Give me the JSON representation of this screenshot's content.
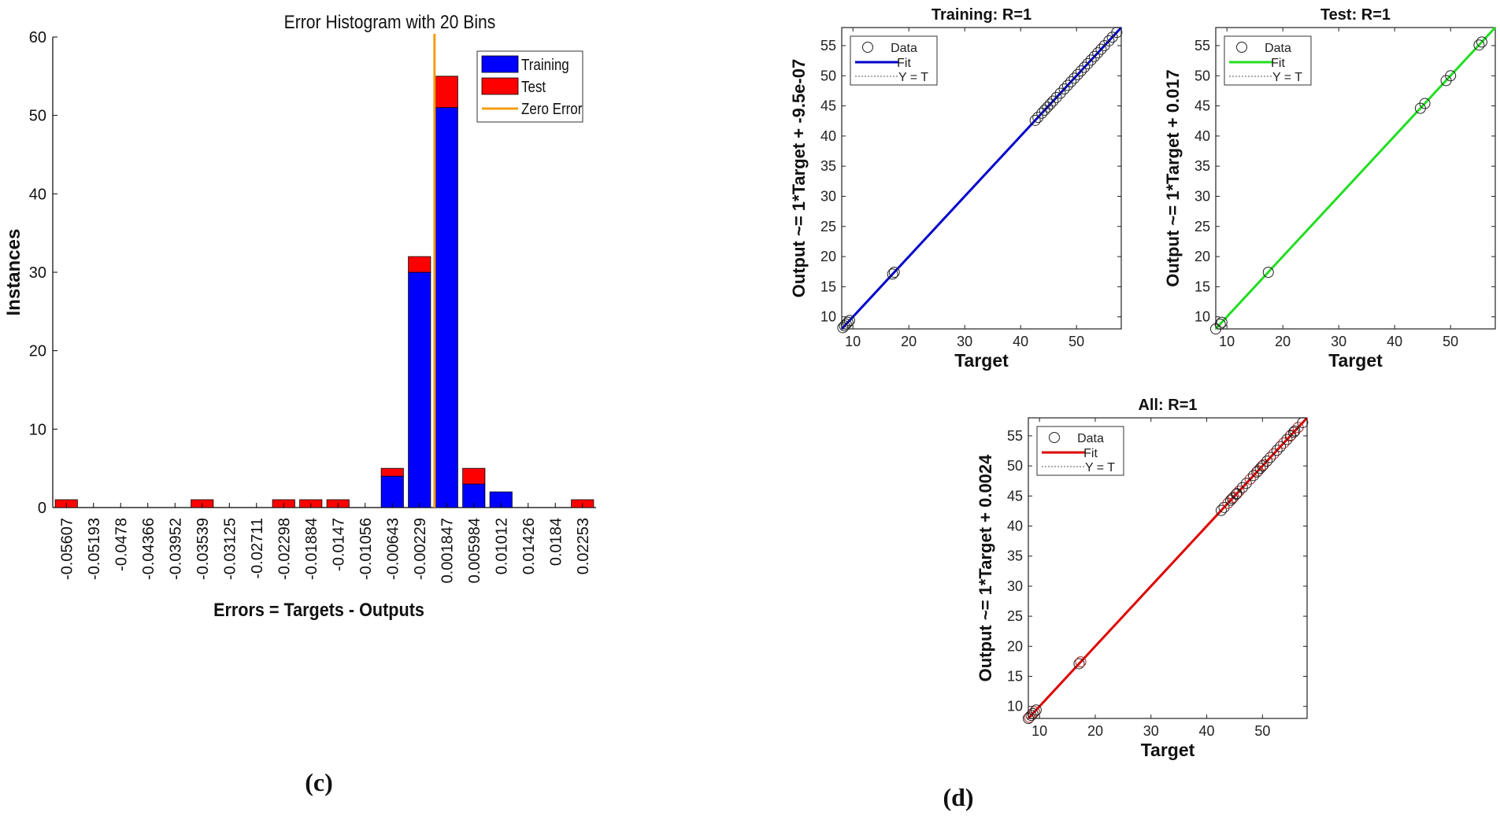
{
  "colors": {
    "training": "#0000ff",
    "test": "#ff0000",
    "zero_error": "#f39c12",
    "fit_training": "#0000cc",
    "fit_test": "#22dd22",
    "fit_all": "#dd0000"
  },
  "panel_labels": {
    "c": "(c)",
    "d": "(d)"
  },
  "chart_data": [
    {
      "type": "bar",
      "title": "Error Histogram with 20 Bins",
      "xlabel": "Errors = Targets - Outputs",
      "ylabel": "Instances",
      "ylim": [
        0,
        60
      ],
      "yticks": [
        0,
        10,
        20,
        30,
        40,
        50,
        60
      ],
      "stacked": true,
      "categories": [
        "-0.05607",
        "-0.05193",
        "-0.0478",
        "-0.04366",
        "-0.03952",
        "-0.03539",
        "-0.03125",
        "-0.02711",
        "-0.02298",
        "-0.01884",
        "-0.0147",
        "-0.01056",
        "-0.00643",
        "-0.00229",
        "0.001847",
        "0.005984",
        "0.01012",
        "0.01426",
        "0.0184",
        "0.02253"
      ],
      "series": [
        {
          "name": "Training",
          "values": [
            0,
            0,
            0,
            0,
            0,
            0,
            0,
            0,
            0,
            0,
            0,
            0,
            4,
            30,
            51,
            3,
            2,
            0,
            0,
            0
          ]
        },
        {
          "name": "Test",
          "values": [
            1,
            0,
            0,
            0,
            0,
            1,
            0,
            0,
            1,
            1,
            1,
            0,
            1,
            2,
            4,
            2,
            0,
            0,
            0,
            1
          ]
        }
      ],
      "zero_error_label": "Zero Error",
      "zero_error_x": 0,
      "legend": [
        "Training",
        "Test",
        "Zero Error"
      ],
      "legend_position": "top-right"
    },
    {
      "type": "scatter",
      "title": "Training: R=1",
      "xlabel": "Target",
      "ylabel": "Output ~= 1*Target + -9.5e-07",
      "xlim": [
        8,
        58
      ],
      "ylim": [
        8,
        58
      ],
      "xticks": [
        10,
        20,
        30,
        40,
        50
      ],
      "yticks": [
        10,
        15,
        20,
        25,
        30,
        35,
        40,
        45,
        50,
        55
      ],
      "fit": {
        "slope": 1,
        "intercept": -9.5e-07
      },
      "points": [
        8.2,
        8.5,
        8.8,
        9.1,
        9.4,
        17.1,
        17.4,
        42.6,
        43.1,
        43.8,
        44.3,
        44.8,
        45.3,
        45.8,
        46.4,
        47.1,
        47.8,
        48.4,
        49.0,
        49.6,
        50.2,
        50.8,
        51.4,
        52.0,
        52.6,
        53.2,
        53.8,
        54.4,
        55.0,
        55.8,
        56.4,
        57.2
      ],
      "legend": [
        "Data",
        "Fit",
        "Y = T"
      ],
      "legend_position": "top-left"
    },
    {
      "type": "scatter",
      "title": "Test: R=1",
      "xlabel": "Target",
      "ylabel": "Output ~= 1*Target + 0.017",
      "xlim": [
        8,
        58
      ],
      "ylim": [
        8,
        58
      ],
      "xticks": [
        10,
        20,
        30,
        40,
        50
      ],
      "yticks": [
        10,
        15,
        20,
        25,
        30,
        35,
        40,
        45,
        50,
        55
      ],
      "fit": {
        "slope": 1,
        "intercept": 0.017
      },
      "points": [
        8.0,
        8.8,
        9.1,
        17.4,
        44.6,
        45.4,
        49.2,
        50.0,
        55.1,
        55.6
      ],
      "legend": [
        "Data",
        "Fit",
        "Y = T"
      ],
      "legend_position": "top-left"
    },
    {
      "type": "scatter",
      "title": "All: R=1",
      "xlabel": "Target",
      "ylabel": "Output ~= 1*Target + 0.0024",
      "xlim": [
        8,
        58
      ],
      "ylim": [
        8,
        58
      ],
      "xticks": [
        10,
        20,
        30,
        40,
        50
      ],
      "yticks": [
        10,
        15,
        20,
        25,
        30,
        35,
        40,
        45,
        50,
        55
      ],
      "fit": {
        "slope": 1,
        "intercept": 0.0024
      },
      "points": [
        8.0,
        8.2,
        8.5,
        8.8,
        9.1,
        9.4,
        17.1,
        17.4,
        42.6,
        43.1,
        43.8,
        44.3,
        44.6,
        44.8,
        45.3,
        45.4,
        45.8,
        46.4,
        47.1,
        47.8,
        48.4,
        49.0,
        49.2,
        49.6,
        50.0,
        50.2,
        50.8,
        51.4,
        52.0,
        52.6,
        53.2,
        53.8,
        54.4,
        55.0,
        55.1,
        55.6,
        55.8,
        56.4,
        57.2
      ],
      "legend": [
        "Data",
        "Fit",
        "Y = T"
      ],
      "legend_position": "top-left"
    }
  ]
}
